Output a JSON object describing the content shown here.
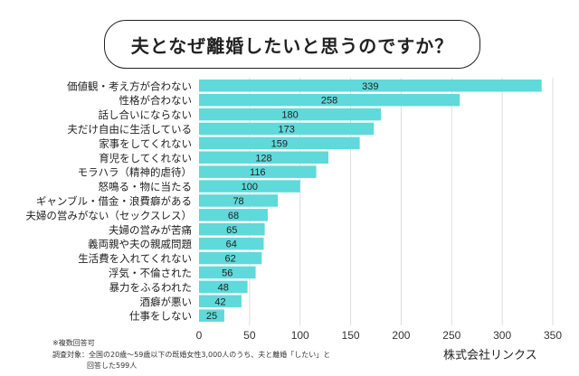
{
  "chart_data": {
    "type": "bar",
    "orientation": "horizontal",
    "title": "夫となぜ離婚したいと思うのですか？",
    "categories": [
      "価値観・考え方が合わない",
      "性格が合わない",
      "話し合いにならない",
      "夫だけ自由に生活している",
      "家事をしてくれない",
      "育児をしてくれない",
      "モラハラ（精神的虐待）",
      "怒鳴る・物に当たる",
      "ギャンブル・借金・浪費癖がある",
      "夫婦の営みがない（セックスレス）",
      "夫婦の営みが苦痛",
      "義両親や夫の親戚問題",
      "生活費を入れてくれない",
      "浮気・不倫された",
      "暴力をふるわれた",
      "酒癖が悪い",
      "仕事をしない"
    ],
    "values": [
      339,
      258,
      180,
      173,
      159,
      128,
      116,
      100,
      78,
      68,
      65,
      64,
      62,
      56,
      48,
      42,
      25
    ],
    "xlim": [
      0,
      350
    ],
    "xticks": [
      0,
      50,
      100,
      150,
      200,
      250,
      300,
      350
    ],
    "grid": "vertical",
    "bar_color": "#5fd9da",
    "data_labels": true
  },
  "notes": {
    "multiple": "※複数回答可",
    "survey_line1": "調査対象：全国の20歳〜59歳以下の既婚女性3,000人のうち、夫と離婚「したい」と",
    "survey_line2": "回答した599人"
  },
  "company": "株式会社リンクス"
}
